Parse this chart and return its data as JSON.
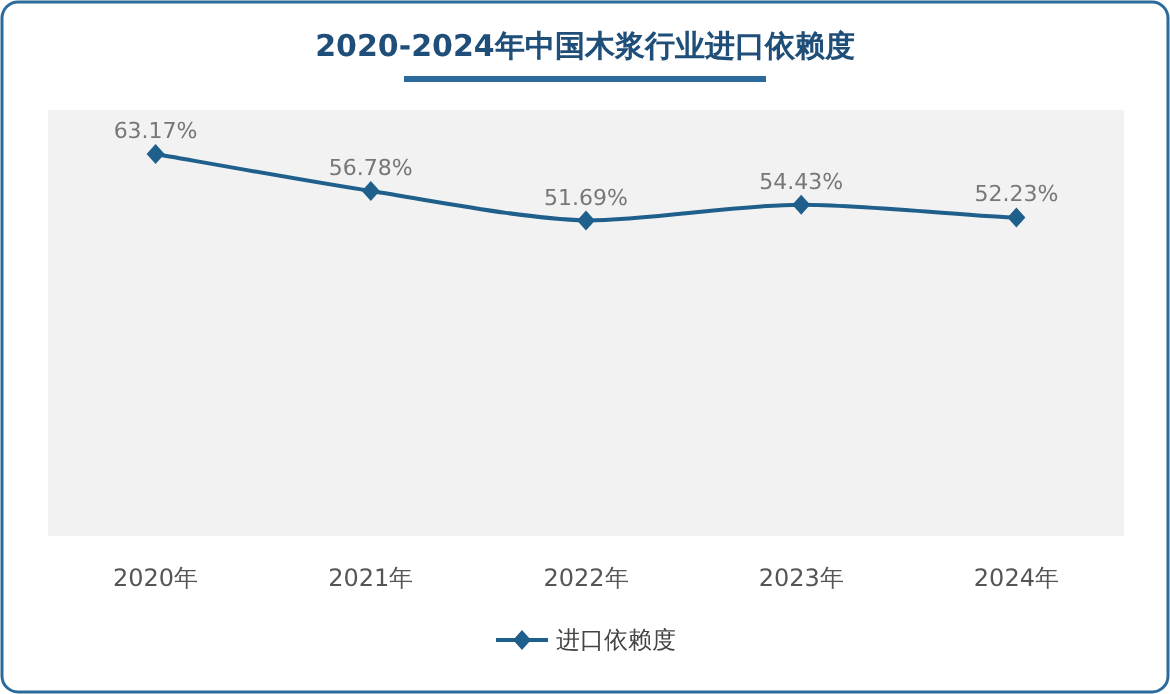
{
  "chart_data": {
    "type": "line",
    "title": "2020-2024年中国木浆行业进口依赖度",
    "categories": [
      "2020年",
      "2021年",
      "2022年",
      "2023年",
      "2024年"
    ],
    "series": [
      {
        "name": "进口依赖度",
        "color": "#1f5f8b",
        "values": [
          63.17,
          56.78,
          51.69,
          54.43,
          52.23
        ],
        "value_labels": [
          "63.17%",
          "56.78%",
          "51.69%",
          "54.43%",
          "52.23%"
        ]
      }
    ],
    "tick_labels": "x",
    "marker": "diamond",
    "legend": "bottom"
  }
}
